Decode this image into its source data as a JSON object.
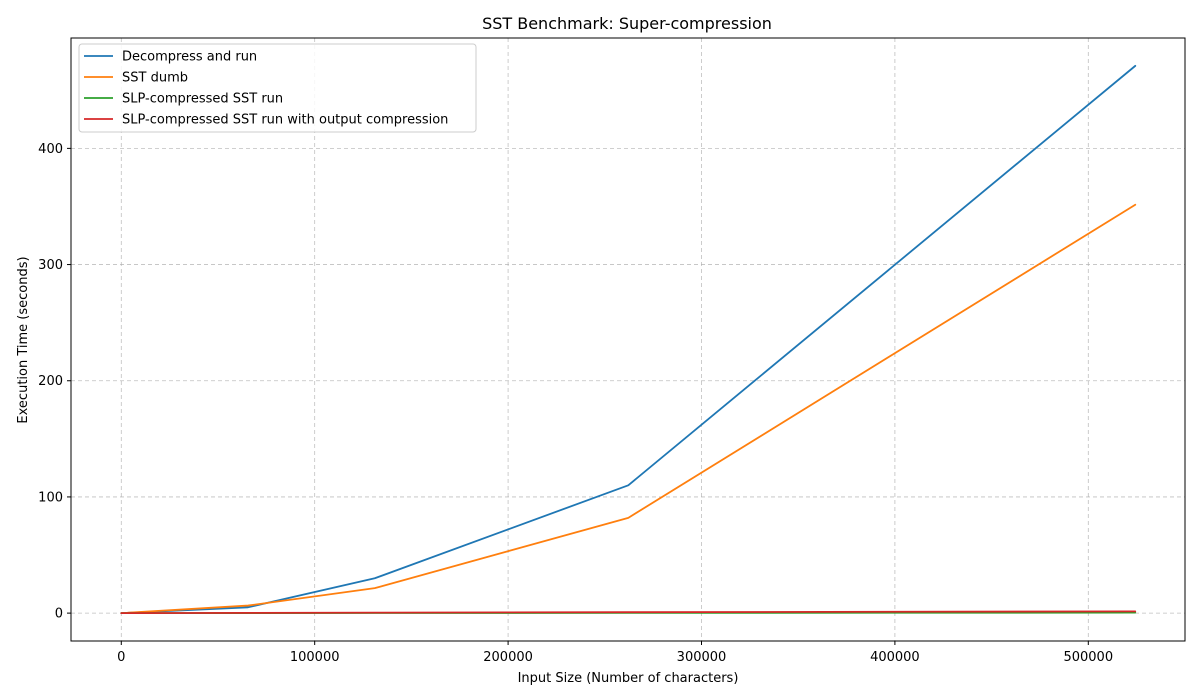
{
  "chart_data": {
    "type": "line",
    "title": "SST Benchmark: Super-compression",
    "xlabel": "Input Size (Number of characters)",
    "ylabel": "Execution Time (seconds)",
    "xlim": [
      -26000,
      550000
    ],
    "ylim": [
      -24,
      495
    ],
    "x_ticks": [
      0,
      100000,
      200000,
      300000,
      400000,
      500000
    ],
    "y_ticks": [
      0,
      100,
      200,
      300,
      400
    ],
    "grid": true,
    "legend_position": "upper-left",
    "x": [
      0,
      65536,
      131072,
      262144,
      524288
    ],
    "series": [
      {
        "name": "Decompress and run",
        "color": "#1f77b4",
        "values": [
          0,
          5,
          30,
          110,
          471
        ]
      },
      {
        "name": "SST dumb",
        "color": "#ff7f0e",
        "values": [
          0,
          6.5,
          21.5,
          82,
          351.5
        ]
      },
      {
        "name": "SLP-compressed SST run",
        "color": "#2ca02c",
        "values": [
          0,
          0.05,
          0.1,
          0.2,
          0.4
        ]
      },
      {
        "name": "SLP-compressed SST run with output compression",
        "color": "#d62728",
        "values": [
          0,
          0.2,
          0.4,
          0.8,
          1.5
        ]
      }
    ]
  }
}
